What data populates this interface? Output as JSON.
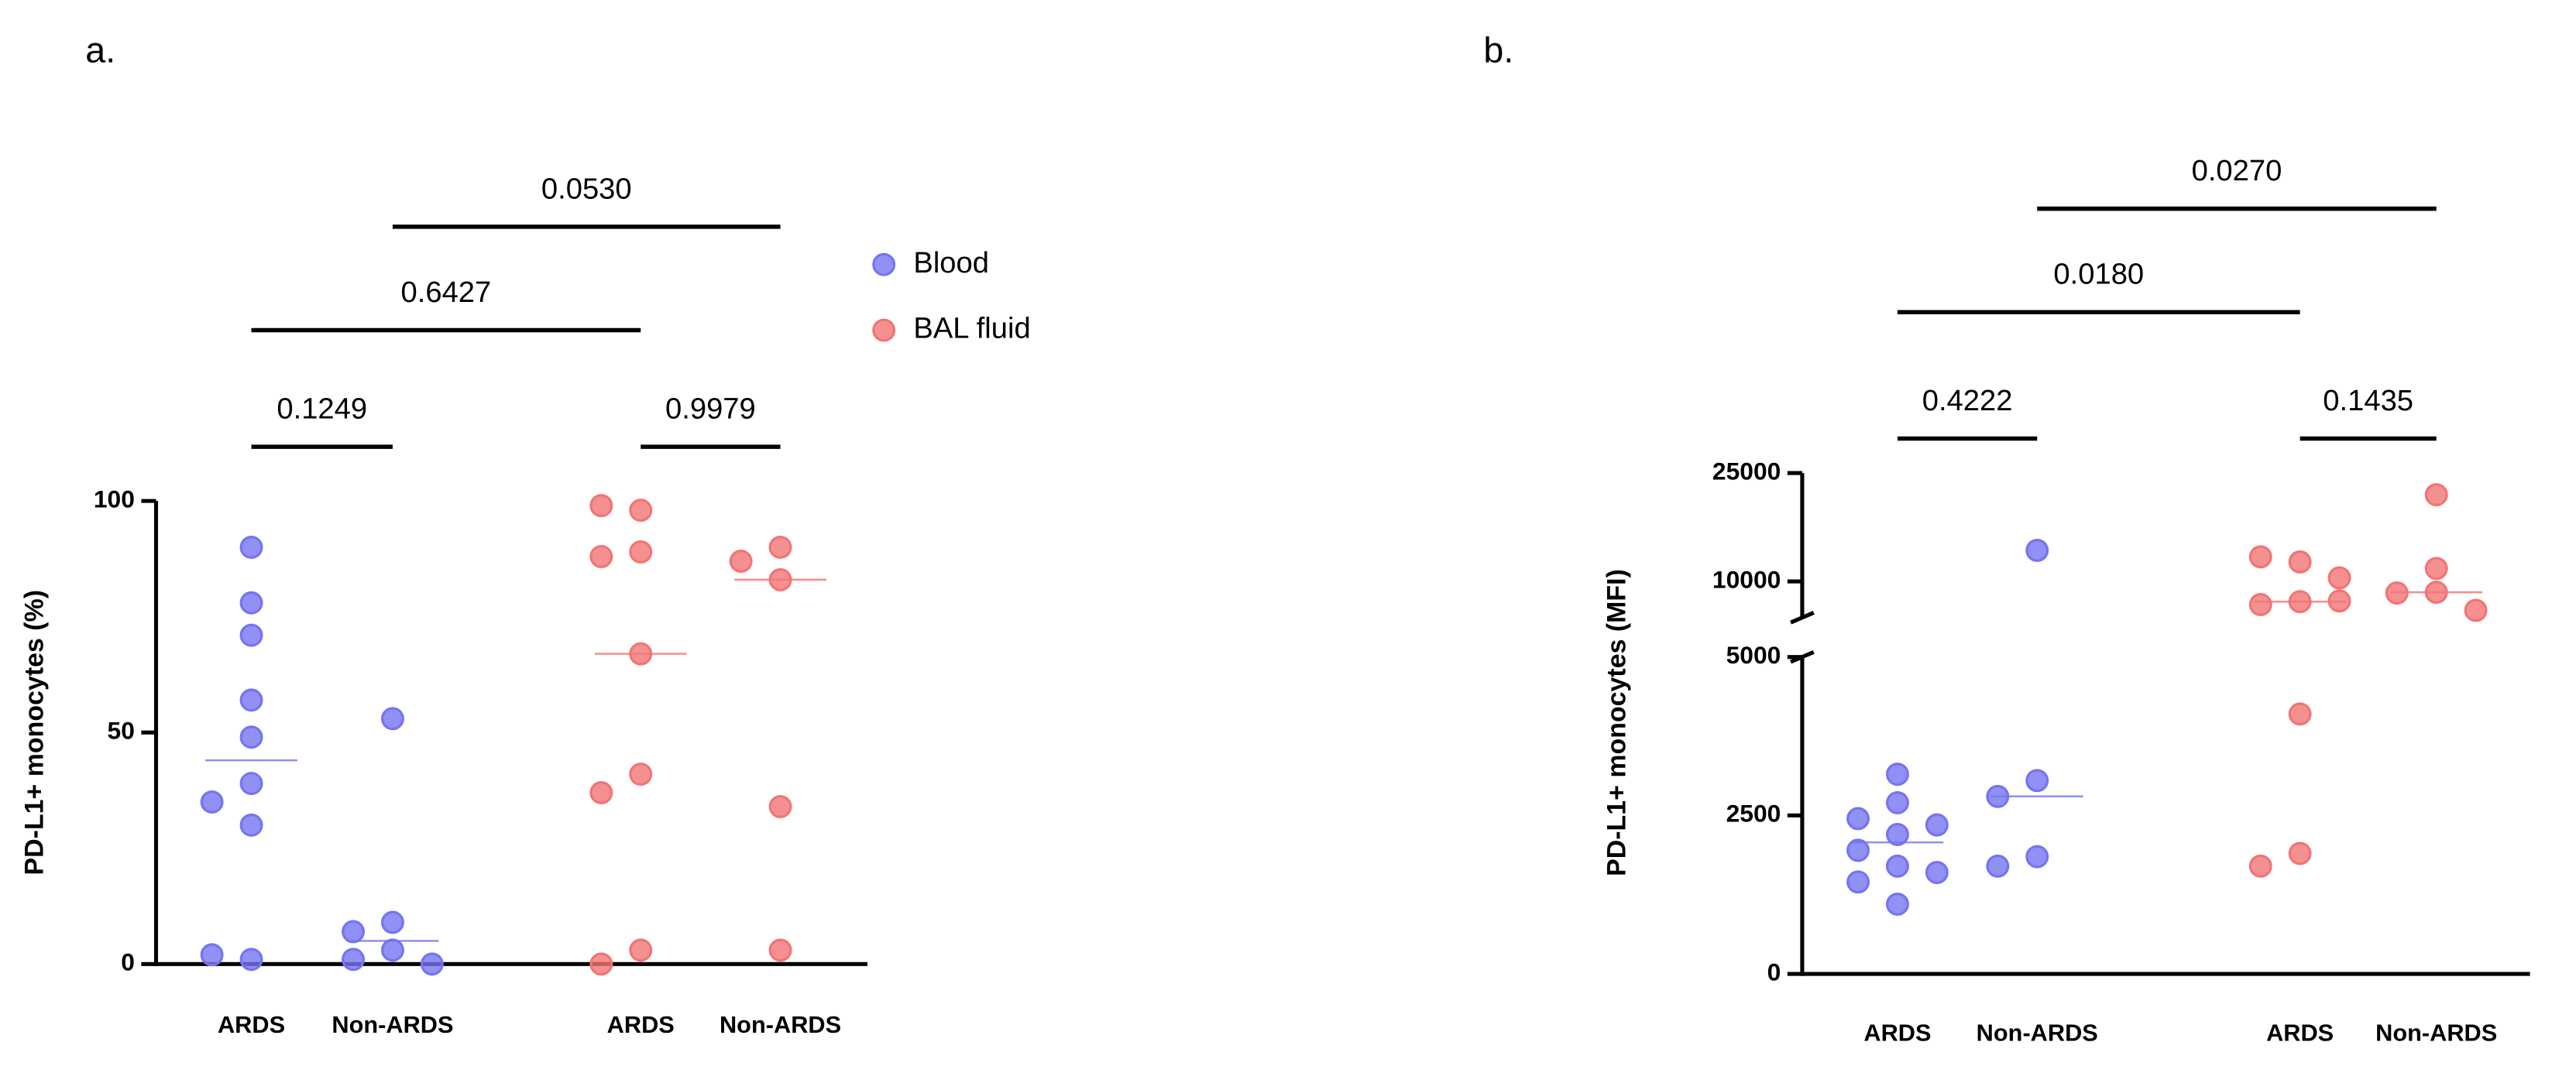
{
  "chart_data": [
    {
      "type": "dot",
      "panel_label": "a.",
      "ylabel": "PD-L1+ monocytes (%)",
      "categories": [
        "ARDS",
        "Non-ARDS",
        "ARDS",
        "Non-ARDS"
      ],
      "ylim": [
        0,
        100
      ],
      "yticks": [
        0,
        50,
        100
      ],
      "legend": true,
      "series": [
        {
          "name": "Blood",
          "color": "#7474f2",
          "values": [
            [
              90,
              78,
              71,
              57,
              49,
              39,
              35,
              30,
              1,
              2
            ],
            [
              53,
              9,
              7,
              3,
              1,
              0
            ],
            null,
            null
          ],
          "medians": [
            44,
            5,
            null,
            null
          ]
        },
        {
          "name": "BAL fluid",
          "color": "#f27474",
          "values": [
            null,
            null,
            [
              98,
              99,
              89,
              88,
              67,
              41,
              37,
              3,
              0
            ],
            [
              90,
              87,
              83,
              34,
              3
            ]
          ],
          "medians": [
            null,
            null,
            67,
            83
          ]
        }
      ],
      "comparisons": [
        {
          "label": "0.1249",
          "between": [
            0,
            1
          ]
        },
        {
          "label": "0.9979",
          "between": [
            2,
            3
          ]
        },
        {
          "label": "0.6427",
          "between": [
            0,
            2
          ]
        },
        {
          "label": "0.0530",
          "between": [
            1,
            3
          ]
        }
      ]
    },
    {
      "type": "dot",
      "panel_label": "b.",
      "ylabel": "PD-L1+ monocytes (MFI)",
      "categories": [
        "ARDS",
        "Non-ARDS",
        "ARDS",
        "Non-ARDS"
      ],
      "segments": [
        {
          "ylim": [
            0,
            5000
          ],
          "yticks": [
            0,
            2500,
            5000
          ]
        },
        {
          "ylim": [
            5000,
            25000
          ],
          "yticks": [
            10000,
            25000
          ]
        }
      ],
      "legend": false,
      "series": [
        {
          "name": "Blood",
          "color": "#7474f2",
          "values": [
            [
              3150,
              2700,
              2450,
              2350,
              2200,
              1950,
              1700,
              1600,
              1450,
              1100
            ],
            [
              14300,
              3050,
              2800,
              1850,
              1700
            ],
            null,
            null
          ],
          "medians": [
            2075,
            2800,
            null,
            null
          ]
        },
        {
          "name": "BAL fluid",
          "color": "#f27474",
          "values": [
            null,
            null,
            [
              12700,
              13400,
              10500,
              7200,
              6800,
              7300,
              4100,
              1900,
              1700
            ],
            [
              22000,
              11800,
              8500,
              8400,
              6000
            ]
          ],
          "medians": [
            null,
            null,
            7200,
            8500
          ]
        }
      ],
      "comparisons": [
        {
          "label": "0.4222",
          "between": [
            0,
            1
          ]
        },
        {
          "label": "0.1435",
          "between": [
            2,
            3
          ]
        },
        {
          "label": "0.0180",
          "between": [
            0,
            2
          ]
        },
        {
          "label": "0.0270",
          "between": [
            1,
            3
          ]
        }
      ]
    }
  ]
}
